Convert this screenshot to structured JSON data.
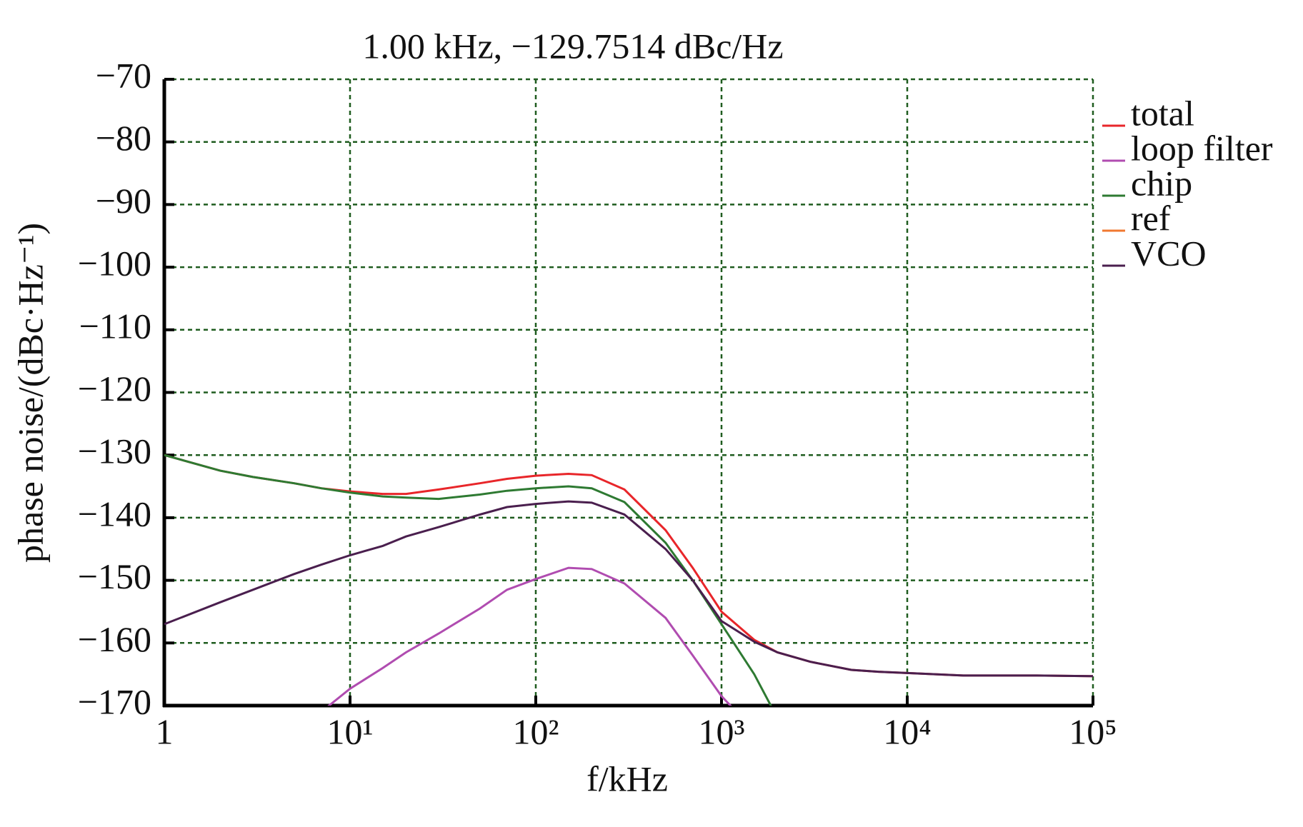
{
  "chart_data": {
    "type": "line",
    "title": "1.00 kHz, −129.7514 dBc/Hz",
    "x_label": "f/kHz",
    "y_label": "phase noise/(dBc·Hz⁻¹)",
    "xscale": "log",
    "grid": true,
    "legend": "right",
    "xlim": [
      1,
      100000
    ],
    "ylim": [
      -170,
      -70
    ],
    "xticks": [
      {
        "value": 1,
        "label": "1"
      },
      {
        "value": 10,
        "label": "10¹"
      },
      {
        "value": 100,
        "label": "10²"
      },
      {
        "value": 1000,
        "label": "10³"
      },
      {
        "value": 10000,
        "label": "10⁴"
      },
      {
        "value": 100000,
        "label": "10⁵"
      }
    ],
    "yticks": [
      {
        "value": -70,
        "label": "−70"
      },
      {
        "value": -80,
        "label": "−80"
      },
      {
        "value": -90,
        "label": "−90"
      },
      {
        "value": -100,
        "label": "−100"
      },
      {
        "value": -110,
        "label": "−110"
      },
      {
        "value": -120,
        "label": "−120"
      },
      {
        "value": -130,
        "label": "−130"
      },
      {
        "value": -140,
        "label": "−140"
      },
      {
        "value": -150,
        "label": "−150"
      },
      {
        "value": -160,
        "label": "−160"
      },
      {
        "value": -170,
        "label": "−170"
      }
    ],
    "x": [
      1,
      2,
      3,
      5,
      7,
      10,
      15,
      20,
      30,
      50,
      70,
      100,
      150,
      200,
      300,
      500,
      700,
      1000,
      1500,
      2000,
      3000,
      5000,
      7000,
      10000,
      20000,
      50000,
      100000
    ],
    "series": [
      {
        "name": "total",
        "color": "#e8262a",
        "values": [
          -130,
          -132.5,
          -133.5,
          -134.5,
          -135.3,
          -135.8,
          -136.2,
          -136.2,
          -135.5,
          -134.5,
          -133.8,
          -133.3,
          -133,
          -133.2,
          -135.5,
          -142,
          -148,
          -155,
          -159.5,
          -161.5,
          -163,
          -164.3,
          -164.6,
          -164.8,
          -165.2,
          -165.2,
          -165.3
        ]
      },
      {
        "name": "loop filter",
        "color": "#b04cb0",
        "values": [
          null,
          null,
          null,
          null,
          -171,
          -167.3,
          -164,
          -161.5,
          -158.5,
          -154.5,
          -151.5,
          -149.8,
          -148,
          -148.2,
          -150.5,
          -156,
          -162,
          -168.5,
          -174,
          null,
          null,
          null,
          null,
          null,
          null,
          null,
          null
        ]
      },
      {
        "name": "chip",
        "color": "#2e7a32",
        "values": [
          -130,
          -132.5,
          -133.5,
          -134.5,
          -135.3,
          -136,
          -136.6,
          -136.8,
          -137,
          -136.3,
          -135.7,
          -135.3,
          -135,
          -135.3,
          -137.5,
          -144,
          -150,
          -157,
          -165,
          -172,
          null,
          null,
          null,
          null,
          null,
          null,
          null
        ]
      },
      {
        "name": "ref",
        "color": "#f07830",
        "values": [
          null,
          null,
          null,
          null,
          null,
          null,
          null,
          null,
          null,
          null,
          null,
          null,
          null,
          null,
          null,
          null,
          null,
          null,
          null,
          null,
          null,
          null,
          null,
          null,
          null,
          null,
          null
        ]
      },
      {
        "name": "VCO",
        "color": "#4a1f4e",
        "values": [
          -157,
          -153.5,
          -151.5,
          -149,
          -147.5,
          -146,
          -144.5,
          -143,
          -141.5,
          -139.5,
          -138.3,
          -137.8,
          -137.4,
          -137.6,
          -139.5,
          -145,
          -150,
          -156.5,
          -159.8,
          -161.5,
          -163,
          -164.3,
          -164.6,
          -164.8,
          -165.2,
          -165.2,
          -165.3
        ]
      }
    ]
  }
}
